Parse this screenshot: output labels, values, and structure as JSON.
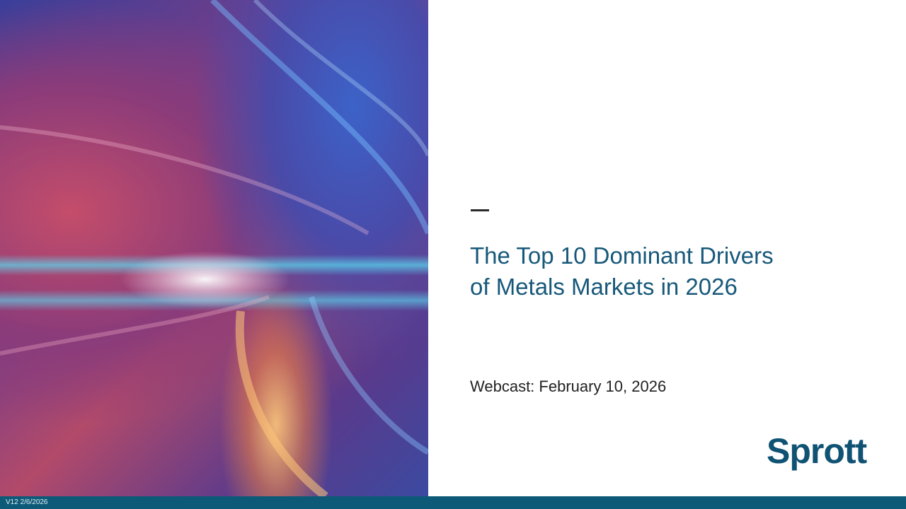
{
  "slide": {
    "title_line1": "The Top 10 Dominant Drivers",
    "title_line2": "of Metals Markets in 2026",
    "subtitle": "Webcast: February 10, 2026",
    "logo_text": "Sprott"
  },
  "footer": {
    "version": "V12 2/6/2026"
  },
  "colors": {
    "accent": "#17587a",
    "footer": "#0c5a78"
  }
}
